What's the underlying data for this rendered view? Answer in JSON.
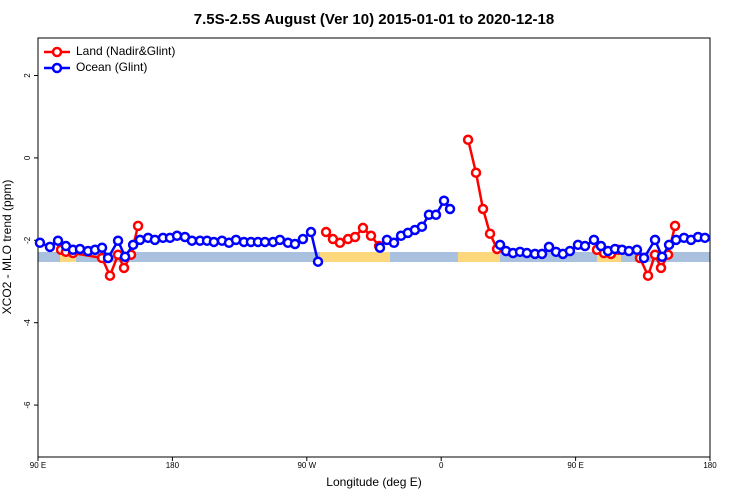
{
  "chart_data": {
    "type": "line",
    "title": "7.5S-2.5S August (Ver 10)   2015-01-01 to 2020-12-18",
    "xlabel": "Longitude (deg E)",
    "ylabel": "XCO2 - MLO trend (ppm)",
    "xlim": [
      90,
      540
    ],
    "ylim": [
      -7.26,
      2.91
    ],
    "xticks": [
      {
        "value": 90,
        "label": "90 E"
      },
      180,
      {
        "value": 270,
        "label": "90 W"
      },
      {
        "value": 360,
        "label": "0"
      },
      {
        "value": 450,
        "label": "90 E"
      },
      {
        "value": 540,
        "label": "180"
      }
    ],
    "yticks": [
      2,
      0,
      -2,
      -4,
      -6
    ],
    "legend": "top-left",
    "series": [
      {
        "name": "Land (Nadir&Glint)",
        "color": "#ff0000",
        "x": [
          105.4,
          108.7,
          113.4,
          132.9,
          138.2,
          143.6,
          147.6,
          152.3,
          157.0,
          null,
          282.9,
          287.5,
          292.2,
          297.6,
          302.3,
          307.6,
          313.0,
          318.4,
          null,
          378.0,
          383.3,
          388.0,
          392.7,
          397.4,
          null,
          464.3,
          469.0,
          473.7,
          478.4,
          null,
          493.1,
          498.5,
          503.2,
          507.2,
          511.9,
          516.6
        ],
        "values": [
          -2.23,
          -2.28,
          -2.31,
          -2.43,
          -2.86,
          -2.35,
          -2.67,
          -2.35,
          -1.65,
          null,
          -1.8,
          -1.97,
          -2.06,
          -1.97,
          -1.92,
          -1.7,
          -1.89,
          -2.14,
          null,
          0.44,
          -0.36,
          -1.24,
          -1.84,
          -2.21,
          null,
          -2.23,
          -2.31,
          -2.33,
          -2.23,
          null,
          -2.43,
          -2.86,
          -2.35,
          -2.67,
          -2.35,
          -1.65
        ]
      },
      {
        "name": "Ocean (Glint)",
        "color": "#0000ff",
        "x": [
          91.3,
          98.0,
          103.4,
          108.7,
          113.4,
          118.1,
          123.5,
          128.2,
          132.9,
          136.9,
          143.6,
          148.3,
          153.7,
          158.3,
          163.7,
          168.3,
          173.7,
          178.4,
          183.1,
          188.4,
          193.1,
          198.5,
          203.2,
          207.8,
          213.2,
          217.9,
          222.6,
          227.9,
          232.6,
          237.3,
          242.0,
          247.4,
          252.0,
          257.4,
          262.1,
          267.4,
          272.8,
          277.5,
          null,
          319.0,
          323.7,
          328.4,
          333.1,
          337.7,
          342.4,
          347.1,
          351.8,
          356.5,
          361.9,
          365.9,
          null,
          399.4,
          403.4,
          408.1,
          412.8,
          417.4,
          422.8,
          427.5,
          432.2,
          436.9,
          441.5,
          446.2,
          451.6,
          456.3,
          462.3,
          467.0,
          471.7,
          476.4,
          481.1,
          485.7,
          491.1,
          495.8,
          503.2,
          507.9,
          512.6,
          517.3,
          522.6,
          527.3,
          532.0,
          536.6
        ],
        "values": [
          -2.06,
          -2.16,
          -2.01,
          -2.14,
          -2.23,
          -2.21,
          -2.26,
          -2.23,
          -2.18,
          -2.43,
          -2.01,
          -2.4,
          -2.11,
          -1.99,
          -1.94,
          -1.99,
          -1.94,
          -1.94,
          -1.89,
          -1.92,
          -2.01,
          -2.01,
          -2.01,
          -2.04,
          -2.01,
          -2.06,
          -1.99,
          -2.04,
          -2.04,
          -2.04,
          -2.04,
          -2.04,
          -1.99,
          -2.06,
          -2.09,
          -1.97,
          -1.8,
          -2.52,
          null,
          -2.18,
          -1.99,
          -2.06,
          -1.89,
          -1.82,
          -1.75,
          -1.67,
          -1.38,
          -1.38,
          -1.04,
          -1.24,
          null,
          -2.11,
          -2.26,
          -2.31,
          -2.28,
          -2.31,
          -2.33,
          -2.33,
          -2.16,
          -2.28,
          -2.33,
          -2.26,
          -2.11,
          -2.14,
          -1.99,
          -2.14,
          -2.26,
          -2.21,
          -2.23,
          -2.26,
          -2.23,
          -2.43,
          -1.99,
          -2.4,
          -2.11,
          -1.99,
          -1.94,
          -1.99,
          -1.92,
          -1.94
        ]
      }
    ]
  }
}
